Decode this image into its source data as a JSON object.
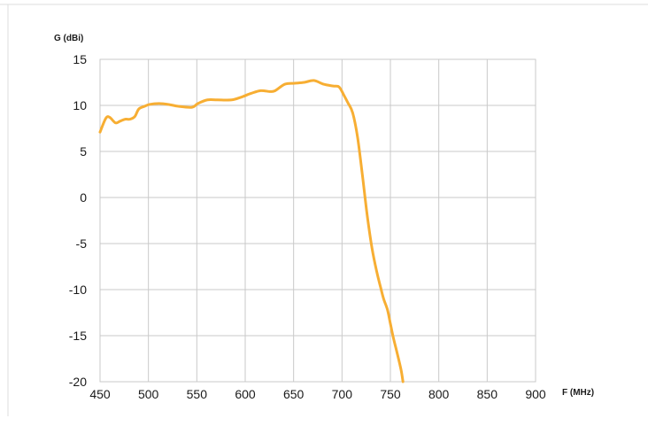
{
  "chart_data": {
    "type": "line",
    "title": "",
    "xlabel": "F (MHz)",
    "ylabel": "G (dBi)",
    "xlim": [
      450,
      900
    ],
    "ylim": [
      -20,
      15
    ],
    "x_ticks": [
      450,
      500,
      550,
      600,
      650,
      700,
      750,
      800,
      850,
      900
    ],
    "y_ticks": [
      15,
      10,
      5,
      0,
      -5,
      -10,
      -15,
      -20
    ],
    "grid": true,
    "series": [
      {
        "color": "#f7ae33",
        "x": [
          450,
          456,
          460,
          466,
          471,
          476,
          481,
          486,
          490,
          496,
          501,
          511,
          521,
          531,
          545,
          551,
          561,
          571,
          586,
          596,
          606,
          616,
          626,
          631,
          641,
          651,
          661,
          671,
          681,
          691,
          697,
          702,
          706,
          711,
          716,
          721,
          726,
          731,
          736,
          740,
          743,
          747,
          750,
          753,
          757,
          761,
          763
        ],
        "y": [
          7.1,
          8.6,
          8.7,
          8.1,
          8.3,
          8.5,
          8.5,
          8.8,
          9.6,
          9.9,
          10.1,
          10.2,
          10.1,
          9.9,
          9.8,
          10.2,
          10.6,
          10.6,
          10.6,
          10.9,
          11.3,
          11.6,
          11.5,
          11.6,
          12.3,
          12.4,
          12.5,
          12.7,
          12.3,
          12.1,
          12.0,
          11.1,
          10.3,
          9.2,
          6.6,
          2.5,
          -1.9,
          -5.5,
          -8.1,
          -9.8,
          -11.0,
          -12.2,
          -13.7,
          -15.2,
          -16.9,
          -18.7,
          -20.0
        ]
      }
    ]
  }
}
